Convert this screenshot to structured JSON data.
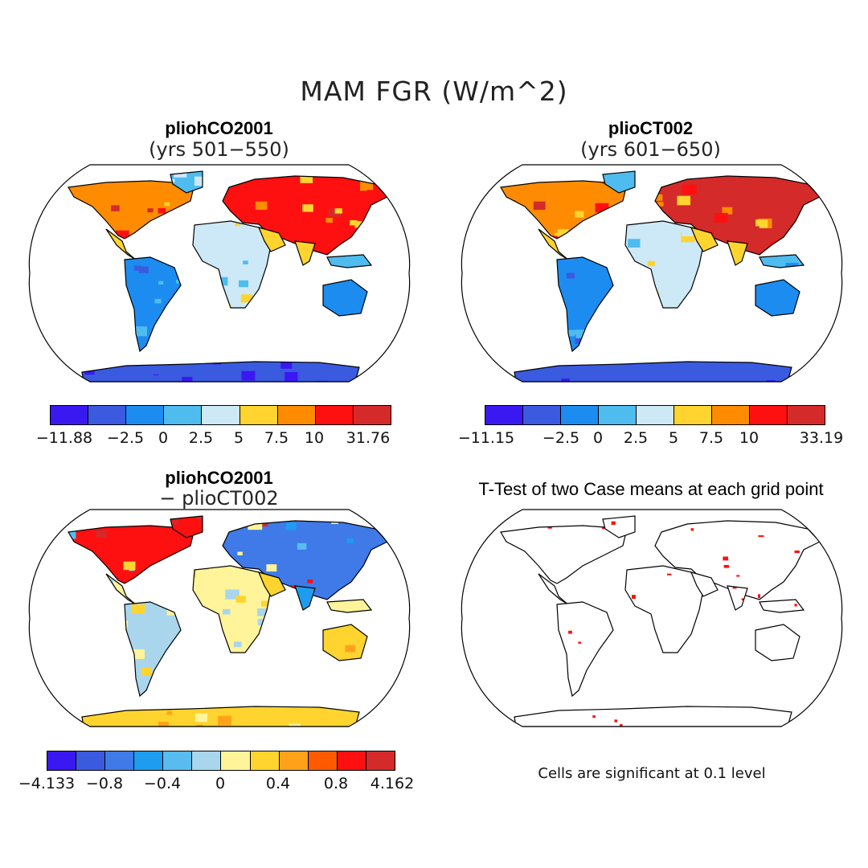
{
  "main_title": "MAM FGR (W/m^2)",
  "colors": {
    "abs_scale": [
      "#3a18f2",
      "#3a5ae0",
      "#1d8cf0",
      "#4fbcf0",
      "#cde8f6",
      "#ffd42e",
      "#ff8c00",
      "#ff1010",
      "#d42a2a"
    ],
    "diff_scale": [
      "#3a18f2",
      "#3a5ae0",
      "#3f7ae8",
      "#1d9cf0",
      "#58bcf0",
      "#a9d6ec",
      "#fff49a",
      "#ffd42e",
      "#ffa21a",
      "#ff5a00",
      "#ff1010",
      "#d42a2a"
    ],
    "signif": "#ff1010"
  },
  "panels": {
    "p1": {
      "title": "pliohCO2001",
      "subtitle": "(yrs 501−550)",
      "ticks": [
        "−11.88",
        "−2.5",
        "0",
        "2.5",
        "5",
        "7.5",
        "10",
        "31.76"
      ]
    },
    "p2": {
      "title": "plioCT002",
      "subtitle": "(yrs 601−650)",
      "ticks": [
        "−11.15",
        "−2.5",
        "0",
        "2.5",
        "5",
        "7.5",
        "10",
        "33.19"
      ]
    },
    "p3": {
      "title": "pliohCO2001",
      "subtitle": "− plioCT002",
      "ticks": [
        "−4.133",
        "−0.8",
        "−0.4",
        "0",
        "0.4",
        "0.8",
        "4.162"
      ]
    },
    "p4": {
      "title": "T-Test of two Case means at each grid point",
      "note": "Cells are significant at 0.1 level"
    }
  }
}
